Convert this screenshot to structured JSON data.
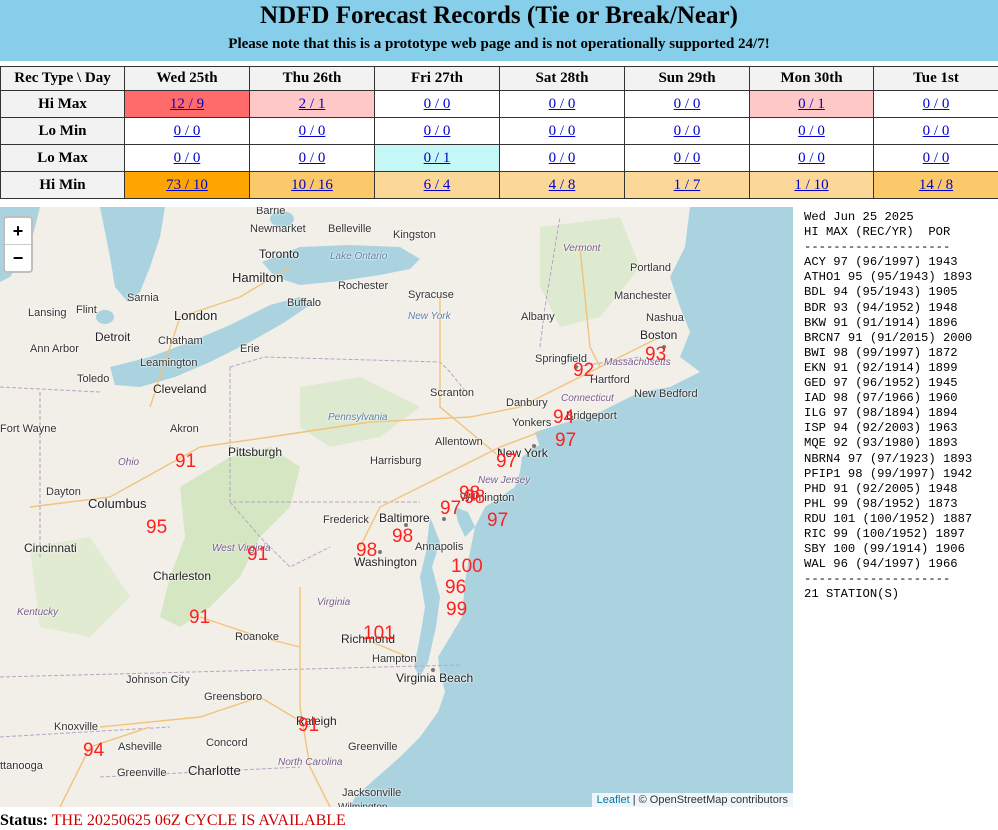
{
  "banner": {
    "title": "NDFD Forecast Records (Tie or Break/Near)",
    "note": "Please note that this is a prototype web page and is not operationally supported 24/7!"
  },
  "table": {
    "corner": "Rec Type \\ Day",
    "days": [
      "Wed 25th",
      "Thu 26th",
      "Fri 27th",
      "Sat 28th",
      "Sun 29th",
      "Mon 30th",
      "Tue 1st"
    ],
    "rows": [
      {
        "label": "Hi Max",
        "cells": [
          "12 / 9",
          "2 / 1",
          "0 / 0",
          "0 / 0",
          "0 / 0",
          "0 / 1",
          "0 / 0"
        ]
      },
      {
        "label": "Lo Min",
        "cells": [
          "0 / 0",
          "0 / 0",
          "0 / 0",
          "0 / 0",
          "0 / 0",
          "0 / 0",
          "0 / 0"
        ]
      },
      {
        "label": "Lo Max",
        "cells": [
          "0 / 0",
          "0 / 0",
          "0 / 1",
          "0 / 0",
          "0 / 0",
          "0 / 0",
          "0 / 0"
        ]
      },
      {
        "label": "Hi Min",
        "cells": [
          "73 / 10",
          "10 / 16",
          "6 / 4",
          "4 / 8",
          "1 / 7",
          "1 / 10",
          "14 / 8"
        ]
      }
    ]
  },
  "map": {
    "zoom_in": "+",
    "zoom_out": "−",
    "attribution_link": "Leaflet",
    "attribution_text": "| © OpenStreetMap contributors",
    "marker_color": "#ff2020",
    "markers": [
      "91",
      "95",
      "91",
      "91",
      "98",
      "98",
      "97",
      "98",
      "98",
      "97",
      "97",
      "100",
      "96",
      "99",
      "101",
      "91",
      "94",
      "92",
      "93",
      "94",
      "97"
    ],
    "cities": [
      "Barrie",
      "Toronto",
      "Newmarket",
      "Belleville",
      "Kingston",
      "Hamilton",
      "Lake Ontario",
      "Rochester",
      "Syracuse",
      "Buffalo",
      "New York",
      "Albany",
      "Sarnia",
      "London",
      "Lansing",
      "Flint",
      "Detroit",
      "Chatham",
      "Ann Arbor",
      "Leamington",
      "Erie",
      "Toledo",
      "Cleveland",
      "Akron",
      "Fort Wayne",
      "Pittsburgh",
      "Pennsylvania",
      "Scranton",
      "Allentown",
      "Harrisburg",
      "Ohio",
      "Dayton",
      "Columbus",
      "Cincinnati",
      "Frederick",
      "Baltimore",
      "Annapolis",
      "Washington",
      "West Virginia",
      "Charleston",
      "Kentucky",
      "Virginia",
      "Roanoke",
      "Richmond",
      "Hampton",
      "Virginia Beach",
      "Johnson City",
      "Greensboro",
      "Raleigh",
      "Knoxville",
      "Asheville",
      "Concord",
      "Charlotte",
      "Greenville",
      "North Carolina",
      "Greenville",
      "Jacksonville",
      "Wilmington",
      "ttanooga",
      "New York",
      "New Jersey",
      "Wilmington",
      "Yonkers",
      "Bridgeport",
      "Danbury",
      "Springfield",
      "Hartford",
      "Connecticut",
      "Massachusetts",
      "Boston",
      "Manchester",
      "Nashua",
      "New Bedford",
      "Vermont",
      "Portland"
    ]
  },
  "listing": {
    "date": "Wed Jun 25 2025",
    "header": "HI MAX (REC/YR)  POR",
    "separator": "--------------------",
    "stations": [
      "ACY 97 (96/1997) 1943",
      "ATHO1 95 (95/1943) 1893",
      "BDL 94 (95/1943) 1905",
      "BDR 93 (94/1952) 1948",
      "BKW 91 (91/1914) 1896",
      "BRCN7 91 (91/2015) 2000",
      "BWI 98 (99/1997) 1872",
      "EKN 91 (92/1914) 1899",
      "GED 97 (96/1952) 1945",
      "IAD 98 (97/1966) 1960",
      "ILG 97 (98/1894) 1894",
      "ISP 94 (92/2003) 1963",
      "MQE 92 (93/1980) 1893",
      "NBRN4 97 (97/1923) 1893",
      "PFIP1 98 (99/1997) 1942",
      "PHD 91 (92/2005) 1948",
      "PHL 99 (98/1952) 1873",
      "RDU 101 (100/1952) 1887",
      "RIC 99 (100/1952) 1897",
      "SBY 100 (99/1914) 1906",
      "WAL 96 (94/1997) 1966"
    ],
    "separator2": "--------------------",
    "footer": "21 STATION(S)"
  },
  "status": {
    "label": "Status:",
    "value": "THE 20250625 06Z CYCLE IS AVAILABLE"
  }
}
